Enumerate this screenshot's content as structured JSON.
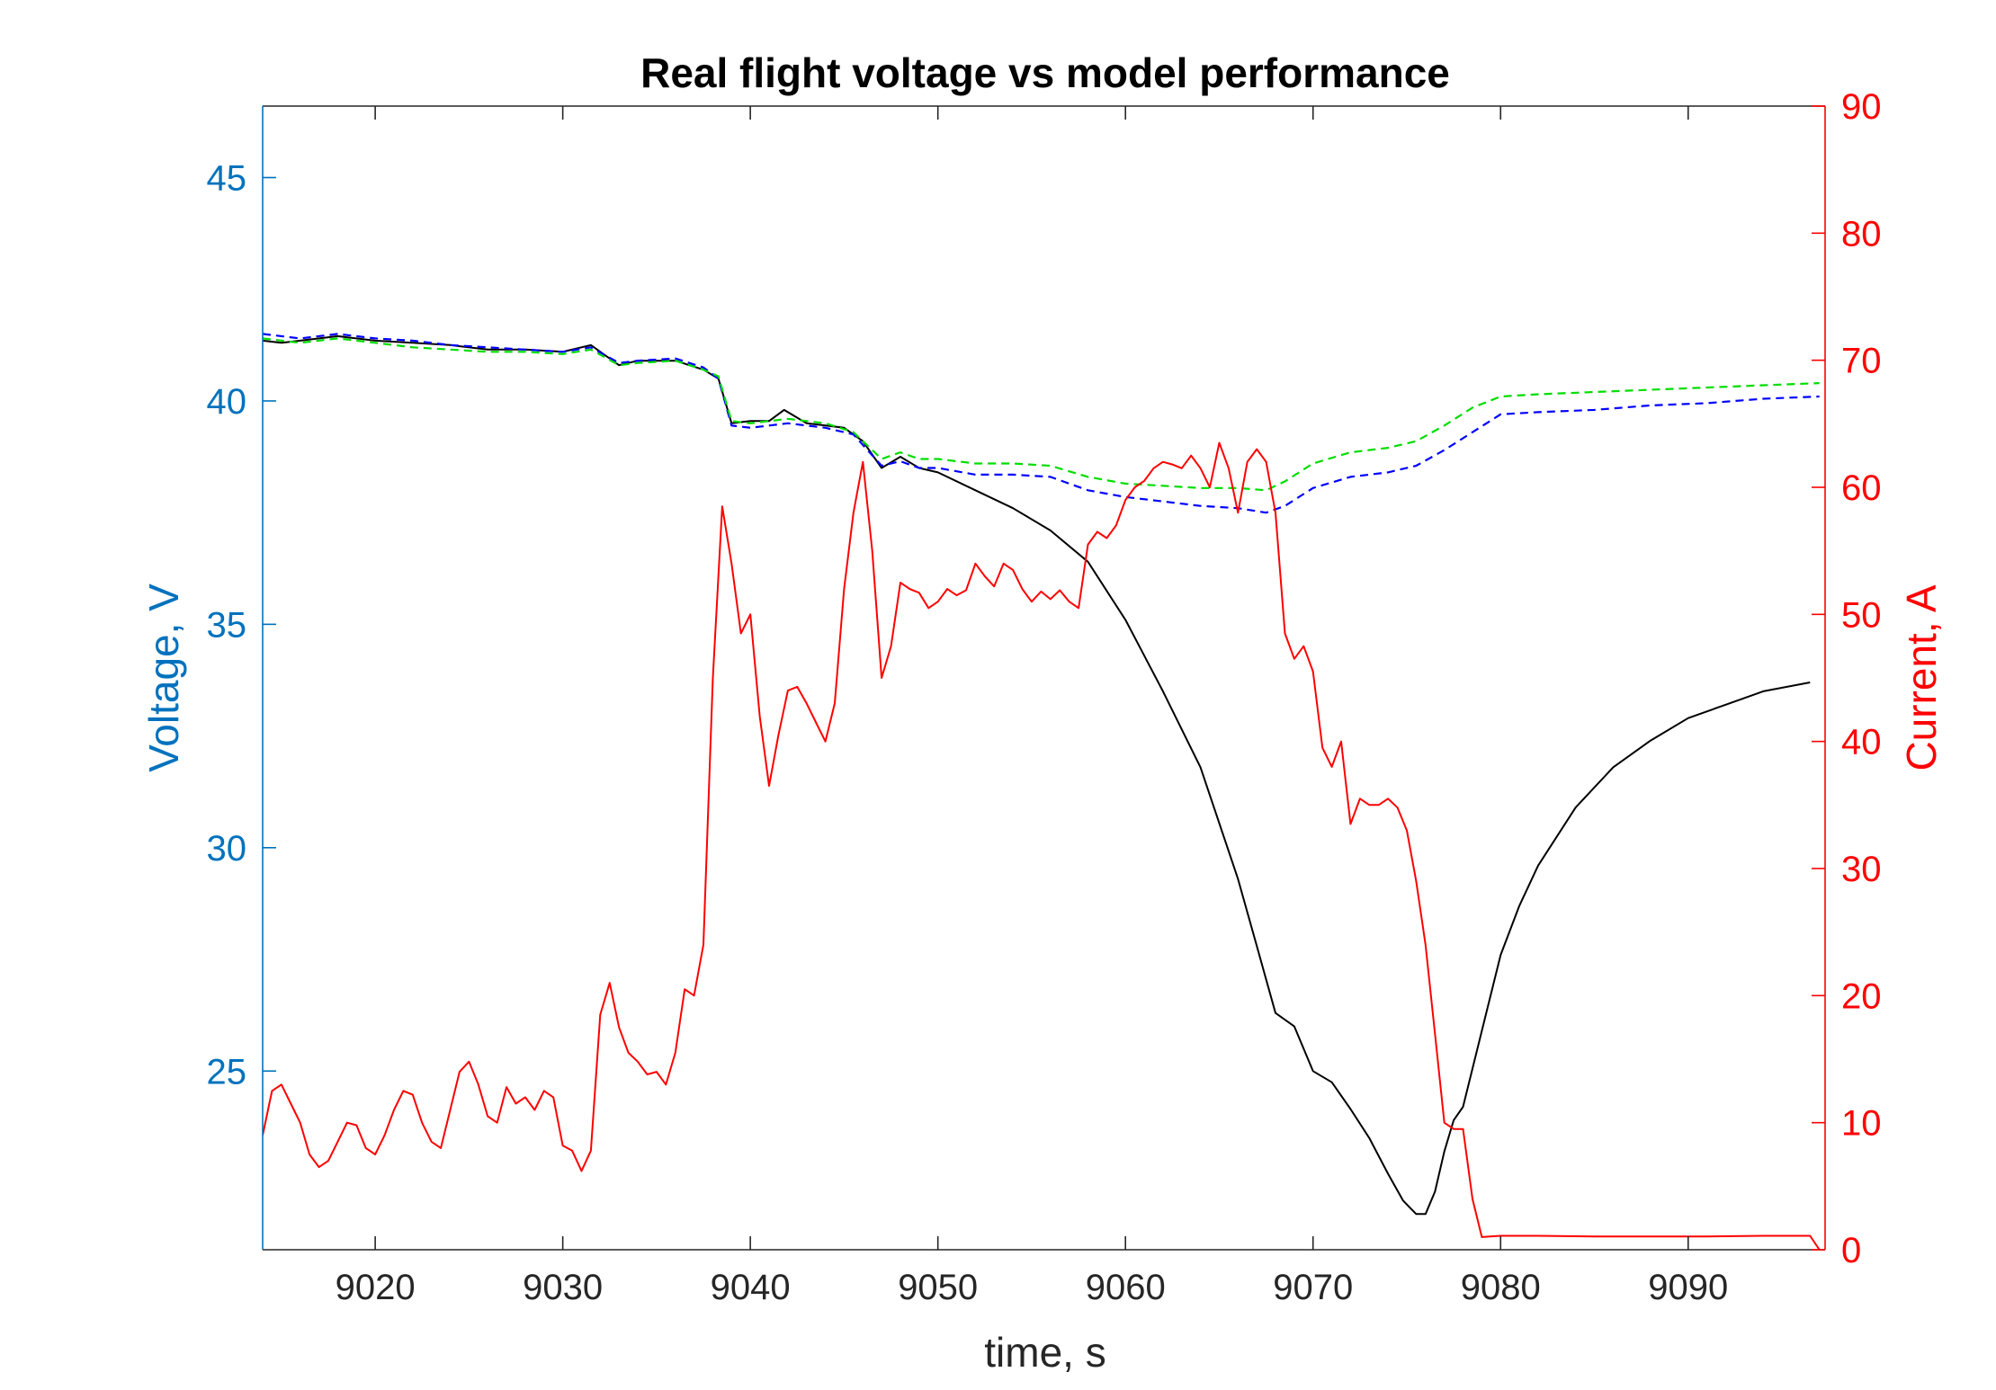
{
  "chart_data": {
    "type": "line",
    "title": "Real flight voltage vs model performance",
    "xlabel": "time, s",
    "ylabel_left": "Voltage, V",
    "ylabel_right": "Current, A",
    "xlim": [
      9014,
      9097.3
    ],
    "ylim_left": [
      21.0,
      46.6
    ],
    "ylim_right": [
      0,
      90
    ],
    "x_ticks": [
      9020,
      9030,
      9040,
      9050,
      9060,
      9070,
      9080,
      9090
    ],
    "y_left_ticks": [
      25,
      30,
      35,
      40,
      45
    ],
    "y_right_ticks": [
      0,
      10,
      20,
      30,
      40,
      50,
      60,
      70,
      80,
      90
    ],
    "grid": false,
    "colors": {
      "left_axis": "#0072BD",
      "right_axis": "#FF0000",
      "measured_voltage": "#000000",
      "model_a": "#0000FF",
      "model_b": "#00DD00",
      "current": "#FF0000"
    },
    "series": [
      {
        "axis": "left",
        "style": "solid",
        "color": "#000000",
        "x": [
          9014,
          9015,
          9016,
          9017,
          9018,
          9019,
          9020,
          9022,
          9024,
          9026,
          9028,
          9030,
          9031.5,
          9033,
          9034,
          9036,
          9037.5,
          9038.3,
          9039,
          9040,
          9041,
          9041.8,
          9043,
          9044,
          9045,
          9046,
          9047,
          9048,
          9049,
          9050,
          9052,
          9054,
          9056,
          9058,
          9060,
          9062,
          9064,
          9066,
          9067,
          9068,
          9069,
          9070,
          9071,
          9072,
          9073,
          9074,
          9074.8,
          9075.5,
          9076,
          9076.5,
          9077,
          9077.5,
          9078,
          9079,
          9080,
          9081,
          9082,
          9084,
          9086,
          9088,
          9090,
          9092,
          9094,
          9096.5
        ],
        "values": [
          41.35,
          41.3,
          41.35,
          41.4,
          41.45,
          41.4,
          41.35,
          41.3,
          41.25,
          41.15,
          41.15,
          41.1,
          41.25,
          40.8,
          40.9,
          40.9,
          40.7,
          40.5,
          39.5,
          39.55,
          39.55,
          39.8,
          39.5,
          39.45,
          39.4,
          39.1,
          38.5,
          38.75,
          38.5,
          38.4,
          38.0,
          37.6,
          37.1,
          36.4,
          35.1,
          33.5,
          31.8,
          29.3,
          27.8,
          26.3,
          26.0,
          25.0,
          24.75,
          24.15,
          23.5,
          22.7,
          22.1,
          21.8,
          21.8,
          22.3,
          23.2,
          23.9,
          24.2,
          25.9,
          27.6,
          28.7,
          29.6,
          30.9,
          31.8,
          32.4,
          32.9,
          33.2,
          33.5,
          33.7
        ]
      },
      {
        "axis": "left",
        "style": "dashed",
        "color": "#0000FF",
        "x": [
          9014,
          9016,
          9018,
          9020,
          9022,
          9024,
          9026,
          9028,
          9030,
          9031.5,
          9033,
          9034,
          9036,
          9037.5,
          9038.3,
          9039,
          9040,
          9042,
          9044,
          9045.5,
          9047,
          9048,
          9049,
          9050,
          9052,
          9054,
          9056,
          9058,
          9060,
          9062,
          9064,
          9066,
          9067.5,
          9068.5,
          9070,
          9072,
          9074,
          9075.5,
          9077,
          9078.5,
          9080,
          9082,
          9085,
          9088,
          9091,
          9094,
          9097
        ],
        "values": [
          41.5,
          41.4,
          41.5,
          41.4,
          41.35,
          41.25,
          41.2,
          41.15,
          41.1,
          41.2,
          40.85,
          40.9,
          40.95,
          40.75,
          40.5,
          39.45,
          39.4,
          39.5,
          39.4,
          39.25,
          38.55,
          38.65,
          38.5,
          38.5,
          38.35,
          38.35,
          38.3,
          38.0,
          37.85,
          37.75,
          37.65,
          37.6,
          37.5,
          37.65,
          38.05,
          38.3,
          38.4,
          38.55,
          38.9,
          39.3,
          39.7,
          39.75,
          39.8,
          39.9,
          39.95,
          40.05,
          40.1
        ]
      },
      {
        "axis": "left",
        "style": "dashed",
        "color": "#00DD00",
        "x": [
          9014,
          9016,
          9018,
          9020,
          9022,
          9024,
          9026,
          9028,
          9030,
          9031.5,
          9033,
          9034,
          9036,
          9037.5,
          9038.3,
          9039,
          9040,
          9042,
          9044,
          9045.5,
          9047,
          9048,
          9049,
          9050,
          9052,
          9054,
          9056,
          9058,
          9060,
          9062,
          9064,
          9066,
          9067.5,
          9068.5,
          9070,
          9072,
          9074,
          9075.5,
          9077,
          9078.5,
          9080,
          9082,
          9085,
          9088,
          9091,
          9094,
          9097
        ],
        "values": [
          41.4,
          41.3,
          41.4,
          41.3,
          41.2,
          41.15,
          41.1,
          41.1,
          41.05,
          41.15,
          40.8,
          40.85,
          40.9,
          40.7,
          40.55,
          39.55,
          39.5,
          39.6,
          39.5,
          39.3,
          38.7,
          38.85,
          38.7,
          38.7,
          38.6,
          38.6,
          38.55,
          38.3,
          38.15,
          38.1,
          38.05,
          38.05,
          38.0,
          38.2,
          38.6,
          38.85,
          38.95,
          39.1,
          39.45,
          39.85,
          40.1,
          40.15,
          40.2,
          40.25,
          40.3,
          40.35,
          40.4
        ]
      },
      {
        "axis": "right",
        "style": "solid",
        "color": "#FF0000",
        "x": [
          9014,
          9014.5,
          9015,
          9015.5,
          9016,
          9016.5,
          9017,
          9017.5,
          9018,
          9018.5,
          9019,
          9019.5,
          9020,
          9020.5,
          9021,
          9021.5,
          9022,
          9022.5,
          9023,
          9023.5,
          9024,
          9024.5,
          9025,
          9025.5,
          9026,
          9026.5,
          9027,
          9027.5,
          9028,
          9028.5,
          9029,
          9029.5,
          9030,
          9030.5,
          9031,
          9031.5,
          9032,
          9032.5,
          9033,
          9033.5,
          9034,
          9034.5,
          9035,
          9035.5,
          9036,
          9036.5,
          9037,
          9037.5,
          9038,
          9038.5,
          9039,
          9039.5,
          9040,
          9040.5,
          9041,
          9041.5,
          9042,
          9042.5,
          9043,
          9043.5,
          9044,
          9044.5,
          9045,
          9045.5,
          9046,
          9046.5,
          9047,
          9047.5,
          9048,
          9048.5,
          9049,
          9049.5,
          9050,
          9050.5,
          9051,
          9051.5,
          9052,
          9052.5,
          9053,
          9053.5,
          9054,
          9054.5,
          9055,
          9055.5,
          9056,
          9056.5,
          9057,
          9057.5,
          9058,
          9058.5,
          9059,
          9059.5,
          9060,
          9060.5,
          9061,
          9061.5,
          9062,
          9062.5,
          9063,
          9063.5,
          9064,
          9064.5,
          9065,
          9065.5,
          9066,
          9066.5,
          9067,
          9067.5,
          9068,
          9068.5,
          9069,
          9069.5,
          9070,
          9070.5,
          9071,
          9071.5,
          9072,
          9072.5,
          9073,
          9073.5,
          9074,
          9074.5,
          9075,
          9075.5,
          9076,
          9076.5,
          9077,
          9077.5,
          9078,
          9078.5,
          9079,
          9080,
          9082,
          9085,
          9088,
          9091,
          9094,
          9096.5,
          9097
        ],
        "values": [
          9,
          12.5,
          13,
          11.5,
          10,
          7.5,
          6.5,
          7,
          8.5,
          10,
          9.8,
          8,
          7.5,
          9,
          11,
          12.5,
          12.2,
          10,
          8.5,
          8,
          11,
          14,
          14.8,
          13,
          10.5,
          10,
          12.8,
          11.5,
          12,
          11,
          12.5,
          12,
          8.2,
          7.8,
          6.2,
          7.8,
          18.5,
          21,
          17.5,
          15.5,
          14.8,
          13.8,
          14,
          13,
          15.5,
          20.5,
          20,
          24,
          45,
          58.5,
          54,
          48.5,
          50,
          42,
          36.5,
          40.5,
          44,
          44.3,
          43,
          41.5,
          40,
          43,
          52,
          58,
          62,
          55,
          45,
          47.5,
          52.5,
          52,
          51.7,
          50.5,
          51,
          52,
          51.5,
          51.9,
          54,
          53,
          52.2,
          54,
          53.5,
          52,
          51,
          51.8,
          51.2,
          51.9,
          51,
          50.5,
          55.5,
          56.5,
          56,
          57,
          59,
          60,
          60.5,
          61.5,
          62,
          61.8,
          61.5,
          62.5,
          61.5,
          60,
          63.5,
          61.5,
          58,
          62,
          63,
          62,
          58,
          48.5,
          46.5,
          47.5,
          45.5,
          39.5,
          38,
          40,
          33.5,
          35.5,
          35,
          35,
          35.5,
          34.8,
          33,
          29,
          24,
          17,
          10,
          9.5,
          9.5,
          4,
          1,
          1.1,
          1.1,
          1.05,
          1.05,
          1.05,
          1.1,
          1.1,
          0
        ]
      }
    ]
  }
}
